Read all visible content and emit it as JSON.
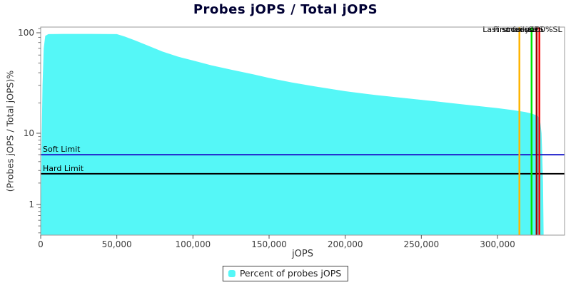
{
  "chart_data": {
    "type": "area",
    "title": "Probes jOPS / Total jOPS",
    "xlabel": "jOPS",
    "ylabel": "(Probes jOPS / Total jOPS)%",
    "x_scale": "linear",
    "y_scale": "log",
    "xlim": [
      0,
      344000
    ],
    "ylim": [
      0.4,
      130
    ],
    "x_ticks": [
      0,
      50000,
      100000,
      150000,
      200000,
      250000,
      300000
    ],
    "y_ticks": [
      1,
      10,
      100
    ],
    "grid": false,
    "frame_color": "#9a9a9a",
    "series": [
      {
        "name": "Percent of probes jOPS",
        "color": "#55F7F7",
        "points": [
          [
            0,
            0.4
          ],
          [
            600,
            8
          ],
          [
            1200,
            30
          ],
          [
            2000,
            70
          ],
          [
            3000,
            93
          ],
          [
            5000,
            97
          ],
          [
            15000,
            97.5
          ],
          [
            30000,
            97.5
          ],
          [
            50000,
            97
          ],
          [
            55000,
            92
          ],
          [
            62000,
            84
          ],
          [
            70000,
            75
          ],
          [
            80000,
            65
          ],
          [
            90000,
            58
          ],
          [
            100000,
            53
          ],
          [
            112000,
            47.5
          ],
          [
            125000,
            43
          ],
          [
            140000,
            38.5
          ],
          [
            150000,
            35.5
          ],
          [
            165000,
            32
          ],
          [
            180000,
            29.3
          ],
          [
            200000,
            26.2
          ],
          [
            220000,
            24
          ],
          [
            240000,
            22.3
          ],
          [
            260000,
            20.7
          ],
          [
            280000,
            19.2
          ],
          [
            300000,
            17.8
          ],
          [
            310000,
            17
          ],
          [
            318000,
            16.3
          ],
          [
            323000,
            15.6
          ],
          [
            326500,
            14.9
          ],
          [
            328000,
            13.5
          ],
          [
            328900,
            10
          ],
          [
            329400,
            5
          ],
          [
            329900,
            2
          ],
          [
            330300,
            0.4
          ]
        ]
      }
    ],
    "limit_lines": [
      {
        "label": "Soft Limit",
        "value": 5,
        "color": "#2222CC"
      },
      {
        "label": "Hard Limit",
        "value": 2.7,
        "color": "#000000"
      }
    ],
    "marker_lines": [
      {
        "label": "Last success",
        "jops": 314400,
        "color": "#FFB400"
      },
      {
        "label": "First failure",
        "jops": 322400,
        "color": "#00E400"
      },
      {
        "label": "max-jOPS",
        "jops": 325700,
        "color": "#990000"
      },
      {
        "label": "100%SL",
        "jops": 327500,
        "color": "#FF0000"
      }
    ],
    "legend": {
      "position": "bottom",
      "entries": [
        {
          "label": "Percent of probes jOPS",
          "color": "#55F7F7"
        }
      ]
    }
  }
}
